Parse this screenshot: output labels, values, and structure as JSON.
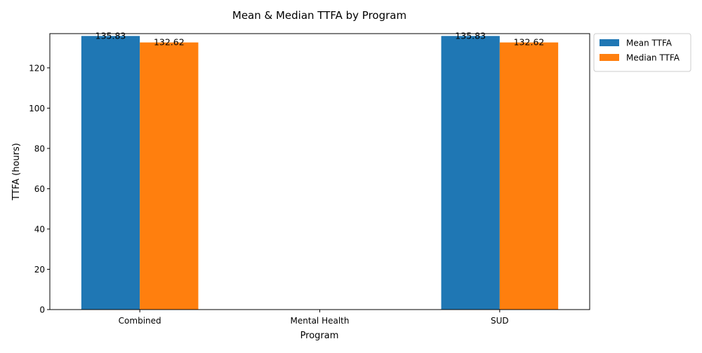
{
  "chart_data": {
    "type": "bar",
    "title": "Mean & Median TTFA by Program",
    "xlabel": "Program",
    "ylabel": "TTFA (hours)",
    "categories": [
      "Combined",
      "Mental Health",
      "SUD"
    ],
    "series": [
      {
        "name": "Mean TTFA",
        "color": "#1f77b4",
        "values": [
          135.83,
          null,
          135.83
        ],
        "labels": [
          "135.83",
          "",
          "135.83"
        ]
      },
      {
        "name": "Median TTFA",
        "color": "#ff7f0e",
        "values": [
          132.62,
          null,
          132.62
        ],
        "labels": [
          "132.62",
          "",
          "132.62"
        ]
      }
    ],
    "ylim": [
      0,
      137
    ],
    "yticks": [
      0,
      20,
      40,
      60,
      80,
      100,
      120
    ],
    "grid": false,
    "legend_position": "outside-top-right"
  }
}
